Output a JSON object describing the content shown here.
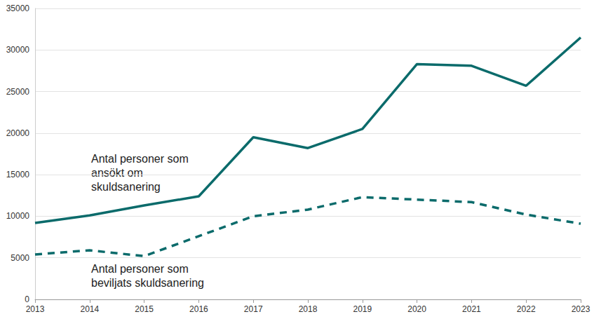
{
  "chart_data": {
    "type": "line",
    "categories": [
      "2013",
      "2014",
      "2015",
      "2016",
      "2017",
      "2018",
      "2019",
      "2020",
      "2021",
      "2022",
      "2023"
    ],
    "series": [
      {
        "name": "Antal personer som ansökt om skuldsanering",
        "color": "#0b6b6b",
        "line_style": "solid",
        "values": [
          9200,
          10100,
          11300,
          12400,
          19500,
          18200,
          20500,
          28300,
          28100,
          25700,
          31500
        ]
      },
      {
        "name": "Antal personer som beviljats skuldsanering",
        "color": "#0b6b6b",
        "line_style": "dashed",
        "values": [
          5400,
          5900,
          5200,
          7600,
          10000,
          10800,
          12300,
          12000,
          11700,
          10200,
          9100
        ]
      }
    ],
    "ylim": [
      0,
      35000
    ],
    "yticks": [
      0,
      5000,
      10000,
      15000,
      20000,
      25000,
      30000,
      35000
    ],
    "grid": true
  }
}
